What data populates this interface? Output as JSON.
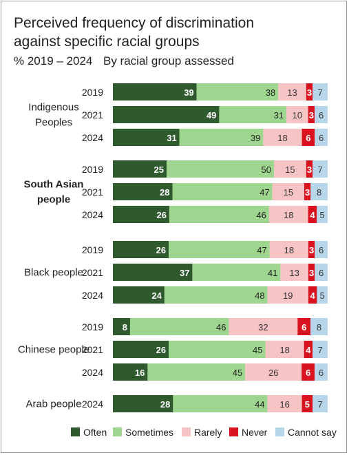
{
  "chart_data": {
    "type": "bar",
    "stacked": true,
    "title": "Perceived frequency of discrimination against specific racial groups",
    "title_lines": [
      "Perceived frequency of discrimination",
      "against specific racial groups"
    ],
    "subtitle": "% 2019 – 2024",
    "subtitle_note": "By racial group assessed",
    "xlim": [
      0,
      100
    ],
    "series": [
      {
        "name": "Often",
        "color": "#2e5a2e"
      },
      {
        "name": "Sometimes",
        "color": "#9fd68f"
      },
      {
        "name": "Rarely",
        "color": "#f7c4c6"
      },
      {
        "name": "Never",
        "color": "#d8121e"
      },
      {
        "name": "Cannot say",
        "color": "#b7d6ea"
      }
    ],
    "groups": [
      {
        "lines": [
          "Indigenous",
          "Peoples"
        ],
        "bold": false,
        "rows": [
          {
            "year": "2019",
            "values": [
              39,
              38,
              13,
              3,
              7
            ]
          },
          {
            "year": "2021",
            "values": [
              49,
              31,
              10,
              3,
              6
            ]
          },
          {
            "year": "2024",
            "values": [
              31,
              39,
              18,
              6,
              6
            ]
          }
        ]
      },
      {
        "lines": [
          "South Asian",
          "people"
        ],
        "bold": true,
        "rows": [
          {
            "year": "2019",
            "values": [
              25,
              50,
              15,
              3,
              7
            ]
          },
          {
            "year": "2021",
            "values": [
              28,
              47,
              15,
              3,
              8
            ]
          },
          {
            "year": "2024",
            "values": [
              26,
              46,
              18,
              4,
              5
            ]
          }
        ]
      },
      {
        "lines": [
          "Black people"
        ],
        "bold": false,
        "rows": [
          {
            "year": "2019",
            "values": [
              26,
              47,
              18,
              3,
              6
            ]
          },
          {
            "year": "2021",
            "values": [
              37,
              41,
              13,
              3,
              6
            ]
          },
          {
            "year": "2024",
            "values": [
              24,
              48,
              19,
              4,
              5
            ]
          }
        ]
      },
      {
        "lines": [
          "Chinese people"
        ],
        "bold": false,
        "rows": [
          {
            "year": "2019",
            "values": [
              8,
              46,
              32,
              6,
              8
            ]
          },
          {
            "year": "2021",
            "values": [
              26,
              45,
              18,
              4,
              7
            ]
          },
          {
            "year": "2024",
            "values": [
              16,
              45,
              26,
              6,
              6
            ]
          }
        ]
      },
      {
        "lines": [
          "Arab people"
        ],
        "bold": false,
        "rows": [
          {
            "year": "2024",
            "values": [
              28,
              44,
              16,
              5,
              7
            ]
          }
        ]
      }
    ]
  }
}
